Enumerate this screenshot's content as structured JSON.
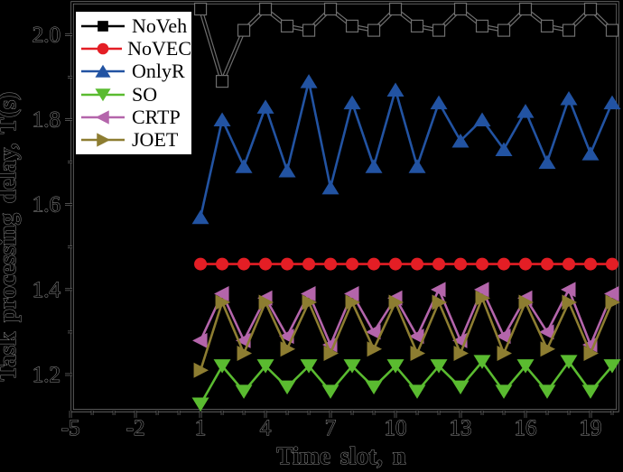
{
  "figure": {
    "background": "#000000",
    "text_color": "#000000",
    "text_halo_color": "#8f8f8f"
  },
  "legend": {
    "background": "#ffffff",
    "border_color": "#000000",
    "position": "upper-left"
  },
  "chart_data": {
    "type": "line",
    "title": "",
    "xlabel": "Time slot, n",
    "ylabel": "Task processing delay, T(s)",
    "xlim": [
      -4.92,
      20.25
    ],
    "ylim": [
      1.115,
      2.075
    ],
    "x_major_ticks": [
      -5,
      -2,
      1,
      4,
      7,
      10,
      13,
      16,
      19
    ],
    "x_minor_step": 1,
    "y_major_ticks": [
      1.2,
      1.4,
      1.6,
      1.8,
      2.0
    ],
    "y_minor_step": 0.1,
    "grid": false,
    "legend_position": "upper-left",
    "halo_color": "#6e6e6e",
    "x": [
      1,
      2,
      3,
      4,
      5,
      6,
      7,
      8,
      9,
      10,
      11,
      12,
      13,
      14,
      15,
      16,
      17,
      18,
      19,
      20
    ],
    "series": [
      {
        "name": "NoVeh",
        "color": "#000000",
        "halo": "#6e6e6e",
        "marker": "square",
        "values": [
          2.06,
          1.89,
          2.01,
          2.06,
          2.02,
          2.01,
          2.06,
          2.02,
          2.01,
          2.06,
          2.02,
          2.01,
          2.06,
          2.02,
          2.01,
          2.06,
          2.02,
          2.01,
          2.06,
          2.01
        ]
      },
      {
        "name": "NoVEC",
        "color": "#e41e25",
        "marker": "circle",
        "values": [
          1.46,
          1.46,
          1.46,
          1.46,
          1.46,
          1.46,
          1.46,
          1.46,
          1.46,
          1.46,
          1.46,
          1.46,
          1.46,
          1.46,
          1.46,
          1.46,
          1.46,
          1.46,
          1.46,
          1.46
        ]
      },
      {
        "name": "OnlyR",
        "color": "#2253a2",
        "marker": "triangle-up",
        "values": [
          1.57,
          1.8,
          1.69,
          1.83,
          1.68,
          1.89,
          1.64,
          1.84,
          1.69,
          1.87,
          1.69,
          1.84,
          1.75,
          1.8,
          1.73,
          1.82,
          1.7,
          1.85,
          1.72,
          1.84
        ]
      },
      {
        "name": "SO",
        "color": "#5abb30",
        "marker": "triangle-down",
        "values": [
          1.13,
          1.22,
          1.16,
          1.22,
          1.17,
          1.22,
          1.16,
          1.22,
          1.17,
          1.22,
          1.16,
          1.22,
          1.17,
          1.23,
          1.16,
          1.22,
          1.16,
          1.23,
          1.16,
          1.22
        ]
      },
      {
        "name": "CRTP",
        "color": "#b465ab",
        "marker": "triangle-left",
        "values": [
          1.28,
          1.39,
          1.28,
          1.38,
          1.29,
          1.39,
          1.27,
          1.39,
          1.3,
          1.38,
          1.29,
          1.4,
          1.28,
          1.4,
          1.29,
          1.38,
          1.3,
          1.4,
          1.27,
          1.39
        ]
      },
      {
        "name": "JOET",
        "color": "#8d7d31",
        "marker": "triangle-right",
        "values": [
          1.21,
          1.37,
          1.25,
          1.37,
          1.26,
          1.37,
          1.25,
          1.37,
          1.26,
          1.37,
          1.25,
          1.37,
          1.25,
          1.38,
          1.25,
          1.37,
          1.26,
          1.37,
          1.25,
          1.37
        ]
      }
    ]
  }
}
